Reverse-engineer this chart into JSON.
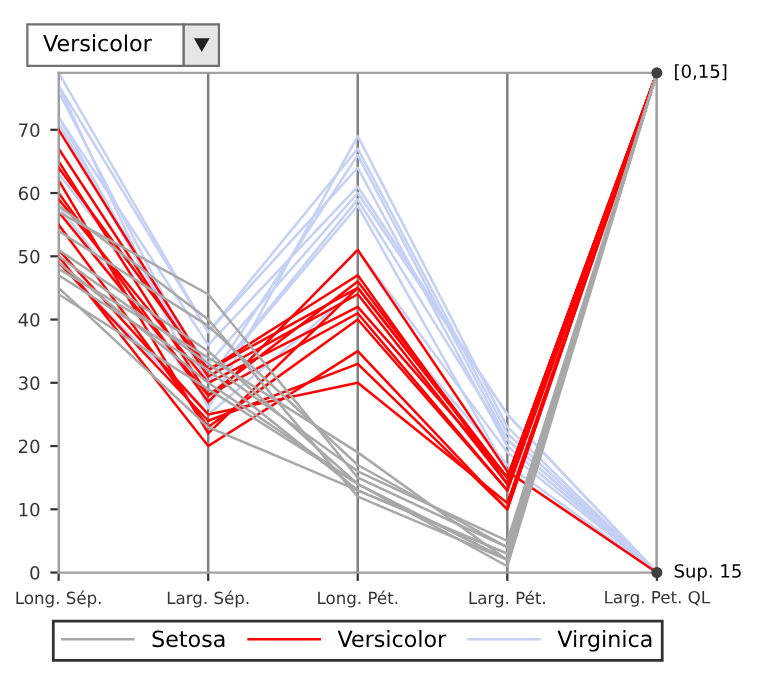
{
  "chart_data": {
    "type": "line",
    "categories": [
      "Long. Sép.",
      "Larg. Sép.",
      "Long. Pét.",
      "Larg. Pét.",
      "Larg. Pet. QL"
    ],
    "ylim": [
      0,
      79
    ],
    "yticks": [
      0,
      10,
      20,
      30,
      40,
      50,
      60,
      70
    ],
    "grid": "x",
    "legend": "bottom",
    "marker": "none",
    "line_style": "solid",
    "annotations": [
      "Versicolor",
      {
        "text": "[0,15]",
        "x": "Larg. Pet. QL",
        "y": 79
      },
      {
        "text": "Sup. 15",
        "x": "Larg. Pet. QL",
        "y": 0
      }
    ],
    "series": [
      {
        "name": "Setosa",
        "color": "#a8a8a8",
        "values": [
          51,
          35,
          14,
          2,
          79
        ]
      },
      {
        "color": "#a8a8a8",
        "values": [
          49,
          30,
          14,
          1,
          79
        ]
      },
      {
        "color": "#a8a8a8",
        "values": [
          47,
          32,
          13,
          3,
          79
        ]
      },
      {
        "color": "#a8a8a8",
        "values": [
          54,
          39,
          17,
          4,
          79
        ]
      },
      {
        "color": "#a8a8a8",
        "values": [
          44,
          29,
          14,
          2,
          79
        ]
      },
      {
        "color": "#a8a8a8",
        "values": [
          58,
          40,
          12,
          2,
          79
        ]
      },
      {
        "color": "#a8a8a8",
        "values": [
          57,
          44,
          15,
          4,
          79
        ]
      },
      {
        "color": "#a8a8a8",
        "values": [
          48,
          34,
          19,
          2,
          79
        ]
      },
      {
        "color": "#a8a8a8",
        "values": [
          45,
          23,
          13,
          3,
          79
        ]
      },
      {
        "color": "#a8a8a8",
        "values": [
          50,
          33,
          16,
          5,
          79
        ]
      },
      {
        "name": "Versicolor",
        "color": "#ff0000",
        "values": [
          70,
          32,
          47,
          14,
          79
        ]
      },
      {
        "color": "#ff0000",
        "values": [
          64,
          32,
          45,
          15,
          79
        ]
      },
      {
        "color": "#ff0000",
        "values": [
          55,
          23,
          40,
          13,
          79
        ]
      },
      {
        "color": "#ff0000",
        "values": [
          49,
          24,
          33,
          10,
          79
        ]
      },
      {
        "color": "#ff0000",
        "values": [
          50,
          20,
          35,
          10,
          79
        ]
      },
      {
        "color": "#ff0000",
        "values": [
          59,
          30,
          42,
          15,
          79
        ]
      },
      {
        "color": "#ff0000",
        "values": [
          67,
          31,
          44,
          14,
          79
        ]
      },
      {
        "color": "#ff0000",
        "values": [
          62,
          22,
          45,
          15,
          79
        ]
      },
      {
        "color": "#ff0000",
        "values": [
          60,
          27,
          51,
          16,
          0
        ]
      },
      {
        "color": "#ff0000",
        "values": [
          51,
          25,
          30,
          11,
          79
        ]
      },
      {
        "color": "#ff0000",
        "values": [
          57,
          28,
          41,
          13,
          79
        ]
      },
      {
        "color": "#ff0000",
        "values": [
          65,
          28,
          46,
          15,
          79
        ]
      },
      {
        "name": "Virginica",
        "color": "#c4d0f4",
        "values": [
          63,
          33,
          60,
          25,
          0
        ]
      },
      {
        "color": "#c4d0f4",
        "values": [
          71,
          30,
          59,
          21,
          0
        ]
      },
      {
        "color": "#c4d0f4",
        "values": [
          76,
          30,
          66,
          21,
          0
        ]
      },
      {
        "color": "#c4d0f4",
        "values": [
          49,
          25,
          45,
          17,
          0
        ]
      },
      {
        "color": "#c4d0f4",
        "values": [
          72,
          36,
          61,
          25,
          0
        ]
      },
      {
        "color": "#c4d0f4",
        "values": [
          77,
          38,
          67,
          22,
          0
        ]
      },
      {
        "color": "#c4d0f4",
        "values": [
          77,
          26,
          69,
          23,
          0
        ]
      },
      {
        "color": "#c4d0f4",
        "values": [
          72,
          30,
          58,
          16,
          0
        ]
      },
      {
        "color": "#c4d0f4",
        "values": [
          79,
          38,
          64,
          20,
          0
        ]
      },
      {
        "color": "#c4d0f4",
        "values": [
          58,
          27,
          51,
          19,
          0
        ]
      }
    ]
  }
}
